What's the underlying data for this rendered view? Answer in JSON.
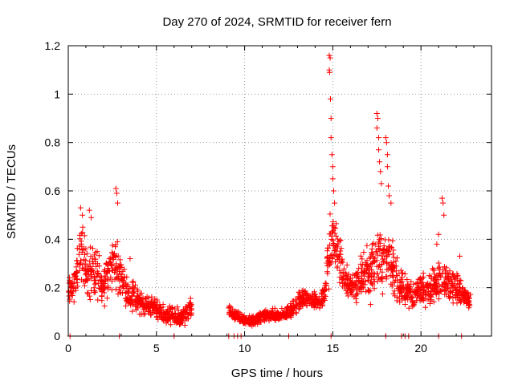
{
  "chart_data": {
    "type": "scatter",
    "title": "Day 270 of 2024, SRMTID for receiver fern",
    "xlabel": "GPS time / hours",
    "ylabel": "SRMTID / TECUs",
    "xlim": [
      0,
      24
    ],
    "ylim": [
      0,
      1.2
    ],
    "xticks": [
      0,
      5,
      10,
      15,
      20
    ],
    "xtick_labels": [
      "0",
      "5",
      "10",
      "15",
      "20"
    ],
    "yticks": [
      0,
      0.2,
      0.4,
      0.6,
      0.8,
      1,
      1.2
    ],
    "ytick_labels": [
      "0",
      "0.2",
      "0.4",
      "0.6",
      "0.8",
      "1",
      "1.2"
    ],
    "grid": true,
    "marker": "+",
    "color": "#ff0000",
    "profile": [
      [
        0.0,
        0.18,
        0.05
      ],
      [
        0.3,
        0.2,
        0.05
      ],
      [
        0.6,
        0.3,
        0.08
      ],
      [
        0.8,
        0.36,
        0.1
      ],
      [
        1.0,
        0.28,
        0.08
      ],
      [
        1.3,
        0.26,
        0.1
      ],
      [
        1.6,
        0.27,
        0.08
      ],
      [
        1.9,
        0.2,
        0.06
      ],
      [
        2.2,
        0.25,
        0.08
      ],
      [
        2.5,
        0.3,
        0.08
      ],
      [
        2.8,
        0.28,
        0.1
      ],
      [
        3.1,
        0.22,
        0.05
      ],
      [
        3.4,
        0.18,
        0.05
      ],
      [
        3.7,
        0.17,
        0.05
      ],
      [
        4.0,
        0.14,
        0.04
      ],
      [
        4.4,
        0.13,
        0.03
      ],
      [
        4.8,
        0.12,
        0.03
      ],
      [
        5.2,
        0.1,
        0.03
      ],
      [
        5.6,
        0.09,
        0.03
      ],
      [
        6.0,
        0.08,
        0.03
      ],
      [
        6.4,
        0.07,
        0.03
      ],
      [
        6.7,
        0.09,
        0.04
      ],
      [
        7.0,
        0.12,
        0.03
      ],
      [
        9.1,
        0.1,
        0.02
      ],
      [
        9.5,
        0.08,
        0.02
      ],
      [
        9.9,
        0.07,
        0.02
      ],
      [
        10.3,
        0.06,
        0.02
      ],
      [
        10.7,
        0.07,
        0.02
      ],
      [
        11.1,
        0.08,
        0.02
      ],
      [
        11.5,
        0.09,
        0.02
      ],
      [
        11.9,
        0.08,
        0.02
      ],
      [
        12.3,
        0.09,
        0.02
      ],
      [
        12.6,
        0.11,
        0.03
      ],
      [
        12.9,
        0.13,
        0.03
      ],
      [
        13.2,
        0.15,
        0.03
      ],
      [
        13.6,
        0.16,
        0.03
      ],
      [
        14.0,
        0.15,
        0.03
      ],
      [
        14.3,
        0.14,
        0.03
      ],
      [
        14.6,
        0.2,
        0.05
      ],
      [
        14.8,
        0.35,
        0.12
      ],
      [
        15.0,
        0.4,
        0.1
      ],
      [
        15.3,
        0.35,
        0.1
      ],
      [
        15.6,
        0.25,
        0.06
      ],
      [
        16.0,
        0.2,
        0.05
      ],
      [
        16.4,
        0.22,
        0.06
      ],
      [
        16.8,
        0.25,
        0.08
      ],
      [
        17.2,
        0.28,
        0.1
      ],
      [
        17.5,
        0.35,
        0.12
      ],
      [
        17.8,
        0.3,
        0.1
      ],
      [
        18.1,
        0.32,
        0.1
      ],
      [
        18.4,
        0.28,
        0.08
      ],
      [
        18.8,
        0.2,
        0.06
      ],
      [
        19.2,
        0.18,
        0.05
      ],
      [
        19.6,
        0.17,
        0.05
      ],
      [
        20.0,
        0.2,
        0.05
      ],
      [
        20.4,
        0.19,
        0.05
      ],
      [
        20.8,
        0.22,
        0.06
      ],
      [
        21.2,
        0.24,
        0.07
      ],
      [
        21.6,
        0.22,
        0.06
      ],
      [
        22.0,
        0.2,
        0.05
      ],
      [
        22.3,
        0.18,
        0.05
      ],
      [
        22.6,
        0.15,
        0.04
      ],
      [
        22.8,
        0.14,
        0.03
      ]
    ],
    "peaks": [
      [
        0.7,
        0.53
      ],
      [
        0.8,
        0.5
      ],
      [
        1.2,
        0.52
      ],
      [
        1.3,
        0.49
      ],
      [
        2.7,
        0.61
      ],
      [
        2.75,
        0.59
      ],
      [
        2.8,
        0.55
      ],
      [
        3.5,
        0.32
      ],
      [
        14.8,
        1.16
      ],
      [
        14.85,
        1.15
      ],
      [
        14.8,
        1.1
      ],
      [
        14.82,
        1.09
      ],
      [
        14.87,
        0.98
      ],
      [
        14.9,
        0.9
      ],
      [
        14.9,
        0.82
      ],
      [
        14.95,
        0.75
      ],
      [
        15.0,
        0.7
      ],
      [
        15.0,
        0.65
      ],
      [
        15.05,
        0.6
      ],
      [
        15.1,
        0.55
      ],
      [
        17.5,
        0.92
      ],
      [
        17.55,
        0.9
      ],
      [
        17.5,
        0.86
      ],
      [
        17.6,
        0.82
      ],
      [
        17.6,
        0.77
      ],
      [
        17.65,
        0.72
      ],
      [
        17.7,
        0.68
      ],
      [
        17.75,
        0.63
      ],
      [
        18.0,
        0.82
      ],
      [
        18.05,
        0.8
      ],
      [
        18.1,
        0.75
      ],
      [
        18.1,
        0.7
      ],
      [
        18.15,
        0.62
      ],
      [
        18.2,
        0.58
      ],
      [
        18.3,
        0.55
      ],
      [
        21.2,
        0.57
      ],
      [
        21.25,
        0.55
      ],
      [
        21.3,
        0.5
      ],
      [
        21.0,
        0.42
      ],
      [
        20.9,
        0.38
      ],
      [
        22.2,
        0.33
      ]
    ],
    "zeros": [
      0.1,
      2.9,
      6.0,
      9.1,
      9.4,
      9.6,
      9.8,
      12.5,
      14.9,
      18.0,
      18.9,
      19.1,
      19.3,
      21.0,
      22.3
    ]
  }
}
